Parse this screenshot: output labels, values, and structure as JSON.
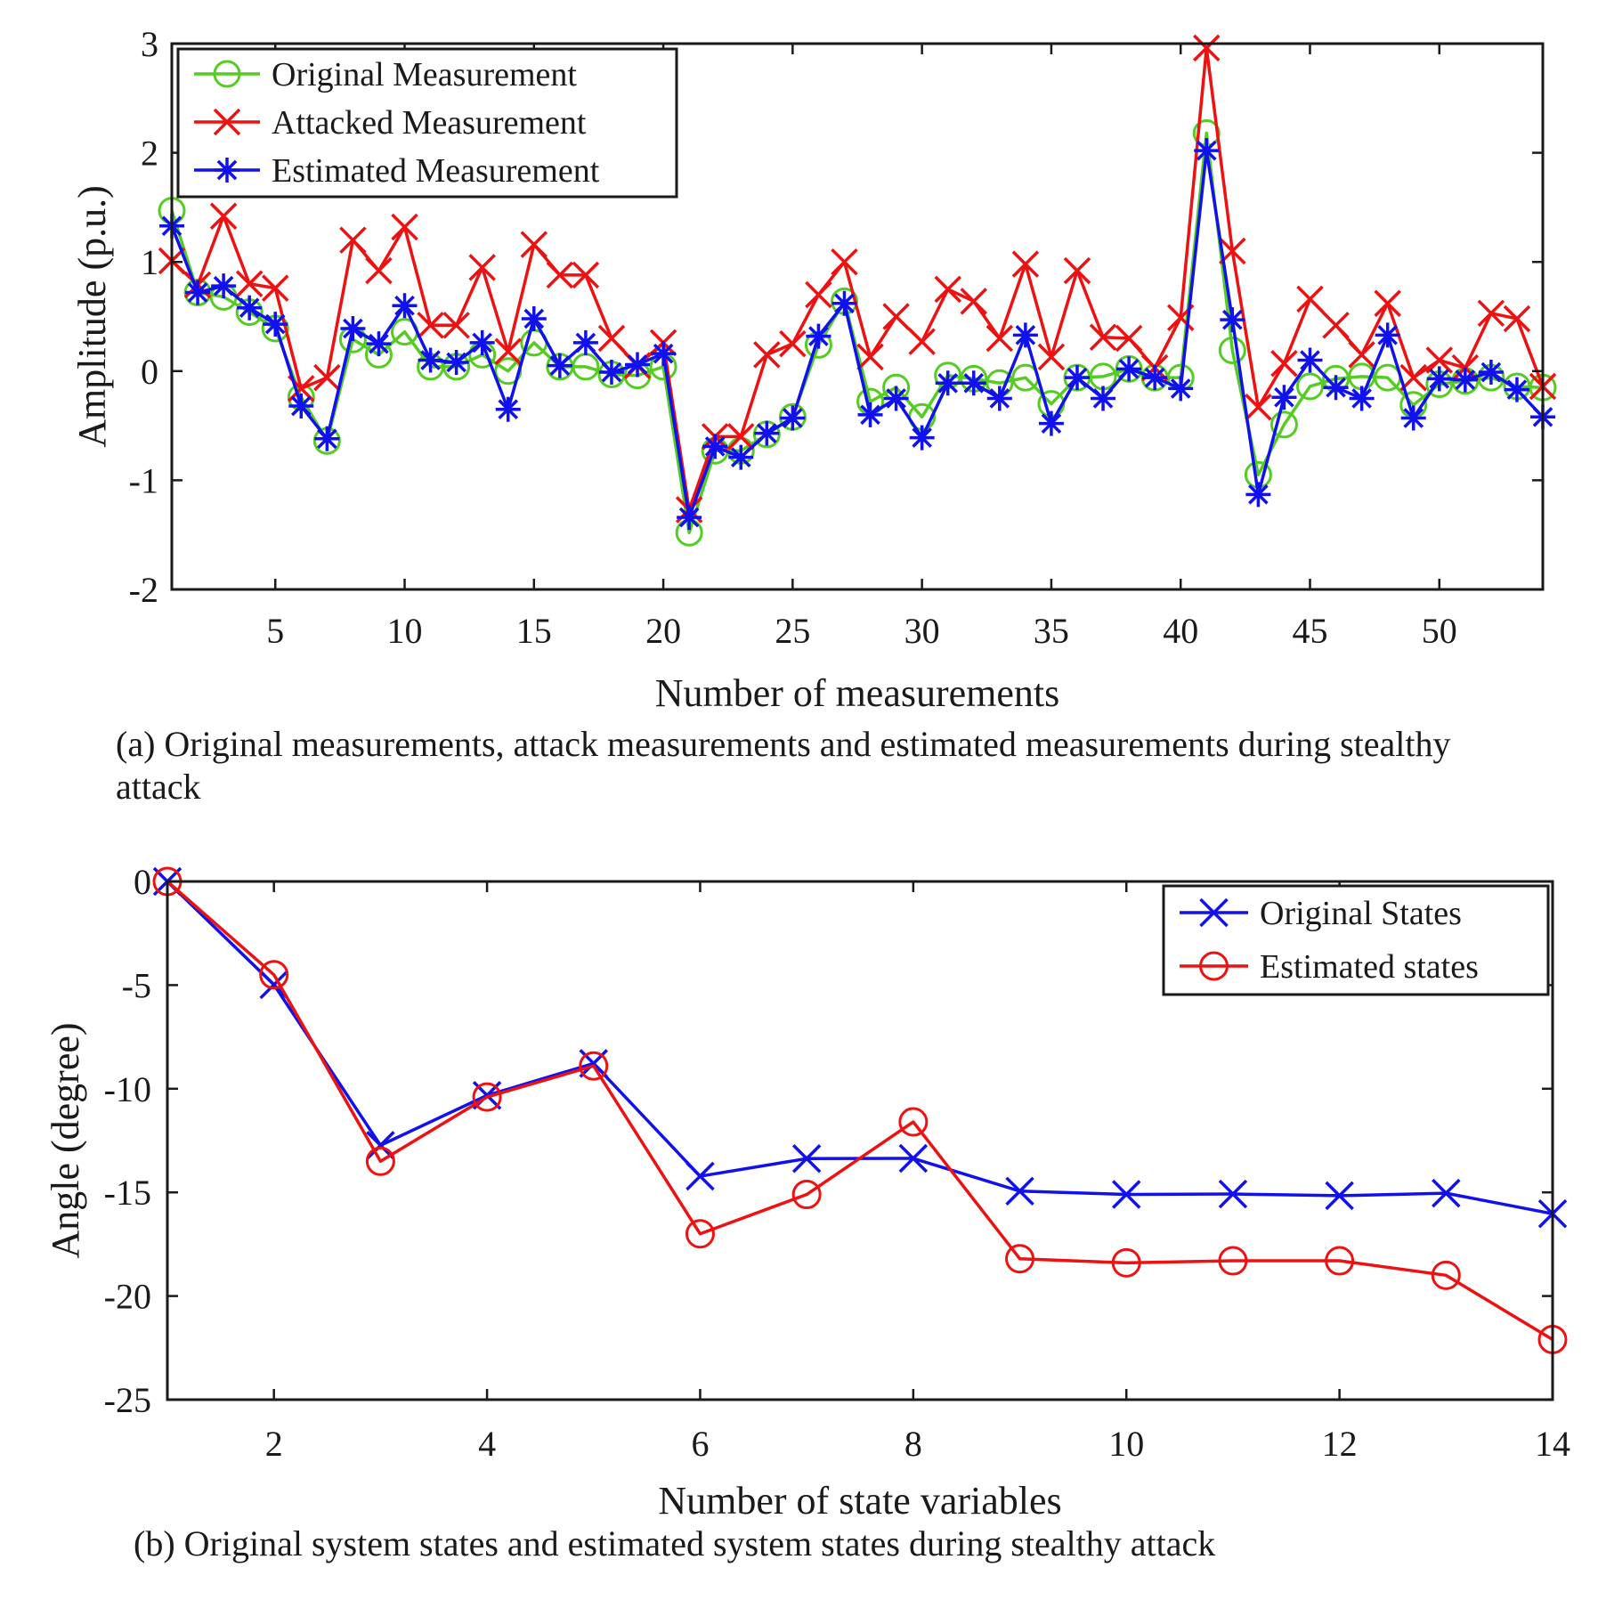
{
  "chart_data": [
    {
      "type": "line",
      "xlabel": "Number of measurements",
      "ylabel": "Amplitude (p.u.)",
      "xlim": [
        1,
        54
      ],
      "ylim": [
        -2,
        3
      ],
      "xticks": [
        5,
        10,
        15,
        20,
        25,
        30,
        35,
        40,
        45,
        50
      ],
      "yticks": [
        -2,
        -1,
        0,
        1,
        2,
        3
      ],
      "grid": false,
      "legend_position": "top-left",
      "caption": "(a) Original measurements, attack measurements and estimated measurements during stealthy attack",
      "x": [
        1,
        2,
        3,
        4,
        5,
        6,
        7,
        8,
        9,
        10,
        11,
        12,
        13,
        14,
        15,
        16,
        17,
        18,
        19,
        20,
        21,
        22,
        23,
        24,
        25,
        26,
        27,
        28,
        29,
        30,
        31,
        32,
        33,
        34,
        35,
        36,
        37,
        38,
        39,
        40,
        41,
        42,
        43,
        44,
        45,
        46,
        47,
        48,
        49,
        50,
        51,
        52,
        53,
        54
      ],
      "series": [
        {
          "name": "Original Measurement",
          "color": "#55cc22",
          "marker": "circle",
          "values": [
            1.47,
            0.72,
            0.68,
            0.54,
            0.39,
            -0.24,
            -0.64,
            0.29,
            0.15,
            0.36,
            0.04,
            0.04,
            0.15,
            0.0,
            0.26,
            0.04,
            0.04,
            -0.03,
            -0.04,
            0.04,
            -1.48,
            -0.73,
            -0.73,
            -0.58,
            -0.42,
            0.24,
            0.64,
            -0.28,
            -0.15,
            -0.42,
            -0.04,
            -0.07,
            -0.11,
            -0.06,
            -0.3,
            -0.06,
            -0.05,
            0.02,
            -0.06,
            -0.06,
            2.18,
            0.19,
            -0.95,
            -0.49,
            -0.14,
            -0.07,
            -0.05,
            -0.06,
            -0.31,
            -0.12,
            -0.09,
            -0.06,
            -0.14,
            -0.15
          ]
        },
        {
          "name": "Attacked Measurement",
          "color": "#ee1111",
          "marker": "x",
          "values": [
            1.01,
            0.79,
            1.42,
            0.8,
            0.76,
            -0.16,
            -0.06,
            1.2,
            0.92,
            1.32,
            0.42,
            0.42,
            0.95,
            0.18,
            1.16,
            0.88,
            0.88,
            0.3,
            0.05,
            0.26,
            -1.27,
            -0.6,
            -0.6,
            0.15,
            0.25,
            0.7,
            1.0,
            0.13,
            0.5,
            0.27,
            0.75,
            0.64,
            0.3,
            0.98,
            0.13,
            0.92,
            0.31,
            0.3,
            0.03,
            0.49,
            2.96,
            1.1,
            -0.33,
            0.07,
            0.66,
            0.42,
            0.15,
            0.62,
            -0.06,
            0.1,
            0.03,
            0.53,
            0.48,
            -0.14
          ]
        },
        {
          "name": "Estimated Measurement",
          "color": "#1111ee",
          "marker": "asterisk",
          "values": [
            1.33,
            0.72,
            0.78,
            0.58,
            0.43,
            -0.32,
            -0.62,
            0.39,
            0.25,
            0.6,
            0.1,
            0.08,
            0.26,
            -0.35,
            0.48,
            0.05,
            0.26,
            -0.01,
            0.06,
            0.16,
            -1.34,
            -0.69,
            -0.79,
            -0.57,
            -0.43,
            0.32,
            0.62,
            -0.4,
            -0.25,
            -0.61,
            -0.11,
            -0.11,
            -0.25,
            0.33,
            -0.48,
            -0.06,
            -0.25,
            0.02,
            -0.06,
            -0.16,
            2.02,
            0.47,
            -1.13,
            -0.24,
            0.1,
            -0.15,
            -0.25,
            0.33,
            -0.43,
            -0.07,
            -0.08,
            -0.01,
            -0.17,
            -0.42
          ]
        }
      ]
    },
    {
      "type": "line",
      "xlabel": "Number of state variables",
      "ylabel": "Angle (degree)",
      "xlim": [
        1,
        14
      ],
      "ylim": [
        -25,
        0
      ],
      "xticks": [
        2,
        4,
        6,
        8,
        10,
        12,
        14
      ],
      "yticks": [
        -25,
        -20,
        -15,
        -10,
        -5,
        0
      ],
      "grid": false,
      "legend_position": "top-right",
      "caption": "(b) Original system states and estimated system states during stealthy attack",
      "x": [
        1,
        2,
        3,
        4,
        5,
        6,
        7,
        8,
        9,
        10,
        11,
        12,
        13,
        14
      ],
      "series": [
        {
          "name": "Original States",
          "color": "#1111ee",
          "marker": "x",
          "values": [
            0,
            -4.98,
            -12.73,
            -10.32,
            -8.78,
            -14.22,
            -13.37,
            -13.36,
            -14.94,
            -15.1,
            -15.08,
            -15.16,
            -15.04,
            -16.03
          ]
        },
        {
          "name": "Estimated states",
          "color": "#ee1111",
          "marker": "circle",
          "values": [
            0,
            -4.5,
            -13.5,
            -10.4,
            -8.9,
            -17,
            -15.1,
            -11.6,
            -18.2,
            -18.4,
            -18.3,
            -18.3,
            -19,
            -22.1
          ]
        }
      ]
    }
  ]
}
